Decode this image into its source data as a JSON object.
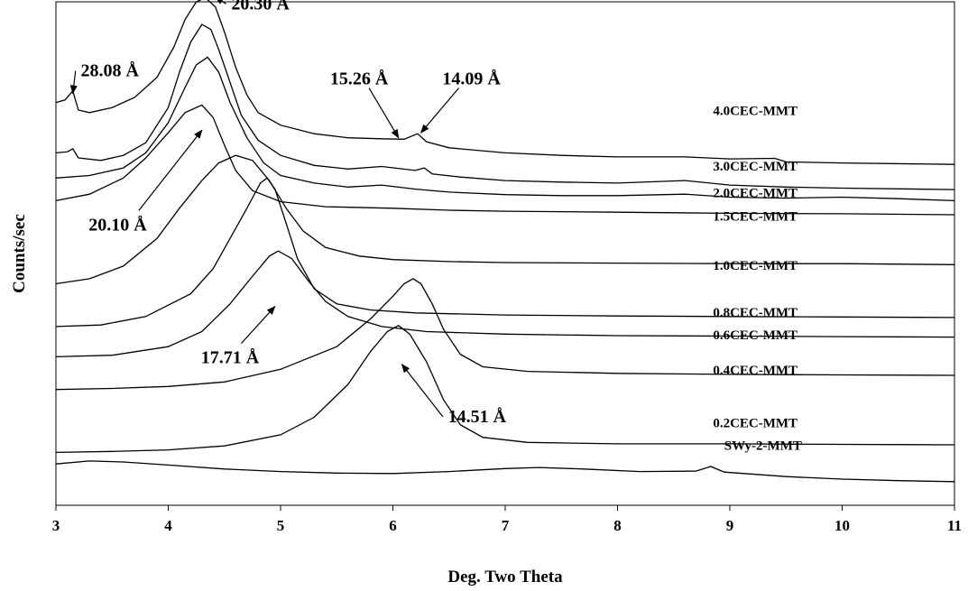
{
  "chart_data": {
    "type": "line",
    "title": "",
    "xlabel": "Deg. Two Theta",
    "ylabel": "Counts/sec",
    "xlim": [
      3,
      11
    ],
    "ylim": [
      0,
      1
    ],
    "xticks": [
      "3",
      "4",
      "5",
      "6",
      "7",
      "8",
      "9",
      "10",
      "11"
    ],
    "grid": false,
    "legend": "none",
    "series": [
      {
        "name": "4.0CEC-MMT",
        "label_x": 8.85,
        "label_y": 0.775,
        "points": [
          [
            3.0,
            0.8
          ],
          [
            3.08,
            0.805
          ],
          [
            3.15,
            0.823
          ],
          [
            3.2,
            0.785
          ],
          [
            3.3,
            0.78
          ],
          [
            3.5,
            0.79
          ],
          [
            3.7,
            0.81
          ],
          [
            3.9,
            0.85
          ],
          [
            4.05,
            0.91
          ],
          [
            4.15,
            0.965
          ],
          [
            4.25,
            1.0
          ],
          [
            4.33,
            1.008
          ],
          [
            4.42,
            0.99
          ],
          [
            4.5,
            0.94
          ],
          [
            4.6,
            0.87
          ],
          [
            4.7,
            0.815
          ],
          [
            4.8,
            0.78
          ],
          [
            5.0,
            0.755
          ],
          [
            5.3,
            0.738
          ],
          [
            5.6,
            0.73
          ],
          [
            5.9,
            0.728
          ],
          [
            6.1,
            0.727
          ],
          [
            6.22,
            0.738
          ],
          [
            6.3,
            0.722
          ],
          [
            6.5,
            0.71
          ],
          [
            7.0,
            0.7
          ],
          [
            7.5,
            0.695
          ],
          [
            8.0,
            0.692
          ],
          [
            8.6,
            0.692
          ],
          [
            9.0,
            0.688
          ],
          [
            9.4,
            0.689
          ],
          [
            9.5,
            0.682
          ],
          [
            10.0,
            0.68
          ],
          [
            11.0,
            0.677
          ]
        ]
      },
      {
        "name": "3.0CEC-MMT",
        "label_x": 8.85,
        "label_y": 0.665,
        "points": [
          [
            3.0,
            0.7
          ],
          [
            3.1,
            0.702
          ],
          [
            3.15,
            0.708
          ],
          [
            3.2,
            0.69
          ],
          [
            3.4,
            0.685
          ],
          [
            3.6,
            0.695
          ],
          [
            3.8,
            0.72
          ],
          [
            4.0,
            0.79
          ],
          [
            4.1,
            0.86
          ],
          [
            4.2,
            0.92
          ],
          [
            4.3,
            0.955
          ],
          [
            4.38,
            0.945
          ],
          [
            4.45,
            0.905
          ],
          [
            4.55,
            0.84
          ],
          [
            4.65,
            0.775
          ],
          [
            4.8,
            0.725
          ],
          [
            5.0,
            0.695
          ],
          [
            5.3,
            0.675
          ],
          [
            5.6,
            0.668
          ],
          [
            5.9,
            0.673
          ],
          [
            6.2,
            0.665
          ],
          [
            6.28,
            0.67
          ],
          [
            6.35,
            0.658
          ],
          [
            6.6,
            0.652
          ],
          [
            7.0,
            0.645
          ],
          [
            7.5,
            0.642
          ],
          [
            8.0,
            0.64
          ],
          [
            8.6,
            0.645
          ],
          [
            9.0,
            0.636
          ],
          [
            9.5,
            0.632
          ],
          [
            10.0,
            0.63
          ],
          [
            11.0,
            0.627
          ]
        ]
      },
      {
        "name": "2.0CEC-MMT",
        "label_x": 8.85,
        "label_y": 0.612,
        "points": [
          [
            3.0,
            0.65
          ],
          [
            3.3,
            0.655
          ],
          [
            3.6,
            0.67
          ],
          [
            3.8,
            0.7
          ],
          [
            4.0,
            0.76
          ],
          [
            4.15,
            0.83
          ],
          [
            4.25,
            0.875
          ],
          [
            4.35,
            0.89
          ],
          [
            4.45,
            0.86
          ],
          [
            4.55,
            0.8
          ],
          [
            4.7,
            0.73
          ],
          [
            4.85,
            0.68
          ],
          [
            5.0,
            0.655
          ],
          [
            5.3,
            0.64
          ],
          [
            5.6,
            0.632
          ],
          [
            5.9,
            0.636
          ],
          [
            6.2,
            0.628
          ],
          [
            6.5,
            0.622
          ],
          [
            7.0,
            0.617
          ],
          [
            7.5,
            0.615
          ],
          [
            8.0,
            0.615
          ],
          [
            8.6,
            0.618
          ],
          [
            9.0,
            0.612
          ],
          [
            9.5,
            0.61
          ],
          [
            10.0,
            0.612
          ],
          [
            10.5,
            0.609
          ],
          [
            11.0,
            0.605
          ]
        ]
      },
      {
        "name": "1.5CEC-MMT",
        "label_x": 8.85,
        "label_y": 0.565,
        "points": [
          [
            3.0,
            0.605
          ],
          [
            3.3,
            0.618
          ],
          [
            3.6,
            0.65
          ],
          [
            3.8,
            0.69
          ],
          [
            4.0,
            0.74
          ],
          [
            4.15,
            0.78
          ],
          [
            4.3,
            0.795
          ],
          [
            4.4,
            0.77
          ],
          [
            4.5,
            0.715
          ],
          [
            4.6,
            0.665
          ],
          [
            4.75,
            0.625
          ],
          [
            5.0,
            0.603
          ],
          [
            5.4,
            0.593
          ],
          [
            6.0,
            0.59
          ],
          [
            6.5,
            0.586
          ],
          [
            7.0,
            0.584
          ],
          [
            8.0,
            0.582
          ],
          [
            9.0,
            0.58
          ],
          [
            10.0,
            0.579
          ],
          [
            11.0,
            0.577
          ]
        ]
      },
      {
        "name": "1.0CEC-MMT",
        "label_x": 8.85,
        "label_y": 0.468,
        "points": [
          [
            3.0,
            0.44
          ],
          [
            3.3,
            0.45
          ],
          [
            3.6,
            0.475
          ],
          [
            3.9,
            0.53
          ],
          [
            4.1,
            0.59
          ],
          [
            4.3,
            0.645
          ],
          [
            4.45,
            0.68
          ],
          [
            4.6,
            0.695
          ],
          [
            4.75,
            0.685
          ],
          [
            4.9,
            0.645
          ],
          [
            5.05,
            0.59
          ],
          [
            5.2,
            0.545
          ],
          [
            5.4,
            0.512
          ],
          [
            5.7,
            0.495
          ],
          [
            6.0,
            0.488
          ],
          [
            6.5,
            0.484
          ],
          [
            7.0,
            0.482
          ],
          [
            8.0,
            0.481
          ],
          [
            9.0,
            0.48
          ],
          [
            10.0,
            0.48
          ],
          [
            11.0,
            0.478
          ]
        ]
      },
      {
        "name": "0.8CEC-MMT",
        "label_x": 8.85,
        "label_y": 0.375,
        "points": [
          [
            3.0,
            0.355
          ],
          [
            3.4,
            0.358
          ],
          [
            3.8,
            0.375
          ],
          [
            4.2,
            0.42
          ],
          [
            4.4,
            0.47
          ],
          [
            4.55,
            0.53
          ],
          [
            4.7,
            0.59
          ],
          [
            4.82,
            0.64
          ],
          [
            4.88,
            0.65
          ],
          [
            4.95,
            0.628
          ],
          [
            5.05,
            0.56
          ],
          [
            5.15,
            0.49
          ],
          [
            5.3,
            0.43
          ],
          [
            5.5,
            0.4
          ],
          [
            5.8,
            0.388
          ],
          [
            6.2,
            0.382
          ],
          [
            7.0,
            0.378
          ],
          [
            8.0,
            0.376
          ],
          [
            9.0,
            0.375
          ],
          [
            10.0,
            0.374
          ],
          [
            11.0,
            0.373
          ]
        ]
      },
      {
        "name": "0.6CEC-MMT",
        "label_x": 8.85,
        "label_y": 0.33,
        "points": [
          [
            3.0,
            0.295
          ],
          [
            3.5,
            0.298
          ],
          [
            4.0,
            0.315
          ],
          [
            4.3,
            0.345
          ],
          [
            4.55,
            0.4
          ],
          [
            4.75,
            0.455
          ],
          [
            4.9,
            0.495
          ],
          [
            4.98,
            0.505
          ],
          [
            5.1,
            0.49
          ],
          [
            5.25,
            0.445
          ],
          [
            5.4,
            0.405
          ],
          [
            5.6,
            0.375
          ],
          [
            5.9,
            0.355
          ],
          [
            6.3,
            0.345
          ],
          [
            7.0,
            0.34
          ],
          [
            8.0,
            0.337
          ],
          [
            9.0,
            0.336
          ],
          [
            10.0,
            0.335
          ],
          [
            11.0,
            0.334
          ]
        ]
      },
      {
        "name": "0.4CEC-MMT",
        "label_x": 8.85,
        "label_y": 0.26,
        "points": [
          [
            3.0,
            0.23
          ],
          [
            3.5,
            0.232
          ],
          [
            4.0,
            0.236
          ],
          [
            4.5,
            0.245
          ],
          [
            5.0,
            0.27
          ],
          [
            5.5,
            0.315
          ],
          [
            5.8,
            0.37
          ],
          [
            6.0,
            0.415
          ],
          [
            6.1,
            0.44
          ],
          [
            6.18,
            0.45
          ],
          [
            6.25,
            0.44
          ],
          [
            6.35,
            0.4
          ],
          [
            6.45,
            0.35
          ],
          [
            6.6,
            0.3
          ],
          [
            6.8,
            0.275
          ],
          [
            7.2,
            0.266
          ],
          [
            8.0,
            0.262
          ],
          [
            9.0,
            0.26
          ],
          [
            10.0,
            0.259
          ],
          [
            11.0,
            0.258
          ]
        ]
      },
      {
        "name": "0.2CEC-MMT",
        "label_x": 8.85,
        "label_y": 0.155,
        "points": [
          [
            3.0,
            0.105
          ],
          [
            3.5,
            0.107
          ],
          [
            4.0,
            0.11
          ],
          [
            4.5,
            0.118
          ],
          [
            5.0,
            0.14
          ],
          [
            5.3,
            0.175
          ],
          [
            5.6,
            0.24
          ],
          [
            5.8,
            0.305
          ],
          [
            5.95,
            0.345
          ],
          [
            6.05,
            0.357
          ],
          [
            6.15,
            0.34
          ],
          [
            6.3,
            0.285
          ],
          [
            6.45,
            0.21
          ],
          [
            6.6,
            0.16
          ],
          [
            6.8,
            0.135
          ],
          [
            7.2,
            0.125
          ],
          [
            8.0,
            0.122
          ],
          [
            9.0,
            0.122
          ],
          [
            10.0,
            0.121
          ],
          [
            11.0,
            0.12
          ]
        ]
      },
      {
        "name": "SWy-2-MMT",
        "label_x": 8.95,
        "label_y": 0.11,
        "points": [
          [
            3.0,
            0.082
          ],
          [
            3.3,
            0.088
          ],
          [
            3.6,
            0.086
          ],
          [
            4.0,
            0.08
          ],
          [
            4.5,
            0.072
          ],
          [
            5.0,
            0.067
          ],
          [
            5.5,
            0.064
          ],
          [
            6.0,
            0.063
          ],
          [
            6.5,
            0.067
          ],
          [
            7.0,
            0.073
          ],
          [
            7.3,
            0.075
          ],
          [
            7.7,
            0.072
          ],
          [
            8.2,
            0.067
          ],
          [
            8.7,
            0.068
          ],
          [
            8.83,
            0.077
          ],
          [
            8.95,
            0.066
          ],
          [
            9.5,
            0.057
          ],
          [
            10.0,
            0.052
          ],
          [
            10.5,
            0.049
          ],
          [
            11.0,
            0.047
          ]
        ]
      }
    ],
    "annotations": [
      {
        "text": "28.08 Å",
        "x": 3.48,
        "y": 0.852,
        "arrow_to": [
          3.15,
          0.818
        ]
      },
      {
        "text": "20.30 Å",
        "x": 4.82,
        "y": 0.985,
        "arrow_to": [
          4.42,
          1.01
        ]
      },
      {
        "text": "15.26 Å",
        "x": 5.7,
        "y": 0.836,
        "arrow_to": [
          6.05,
          0.73
        ]
      },
      {
        "text": "14.09 Å",
        "x": 6.7,
        "y": 0.836,
        "arrow_to": [
          6.25,
          0.74
        ]
      },
      {
        "text": "20.10 Å",
        "x": 3.55,
        "y": 0.546,
        "arrow_to": [
          4.3,
          0.745
        ]
      },
      {
        "text": "17.71 Å",
        "x": 4.55,
        "y": 0.282,
        "arrow_to": [
          4.95,
          0.395
        ]
      },
      {
        "text": "14.51 Å",
        "x": 6.75,
        "y": 0.165,
        "arrow_to": [
          6.08,
          0.28
        ]
      }
    ]
  }
}
